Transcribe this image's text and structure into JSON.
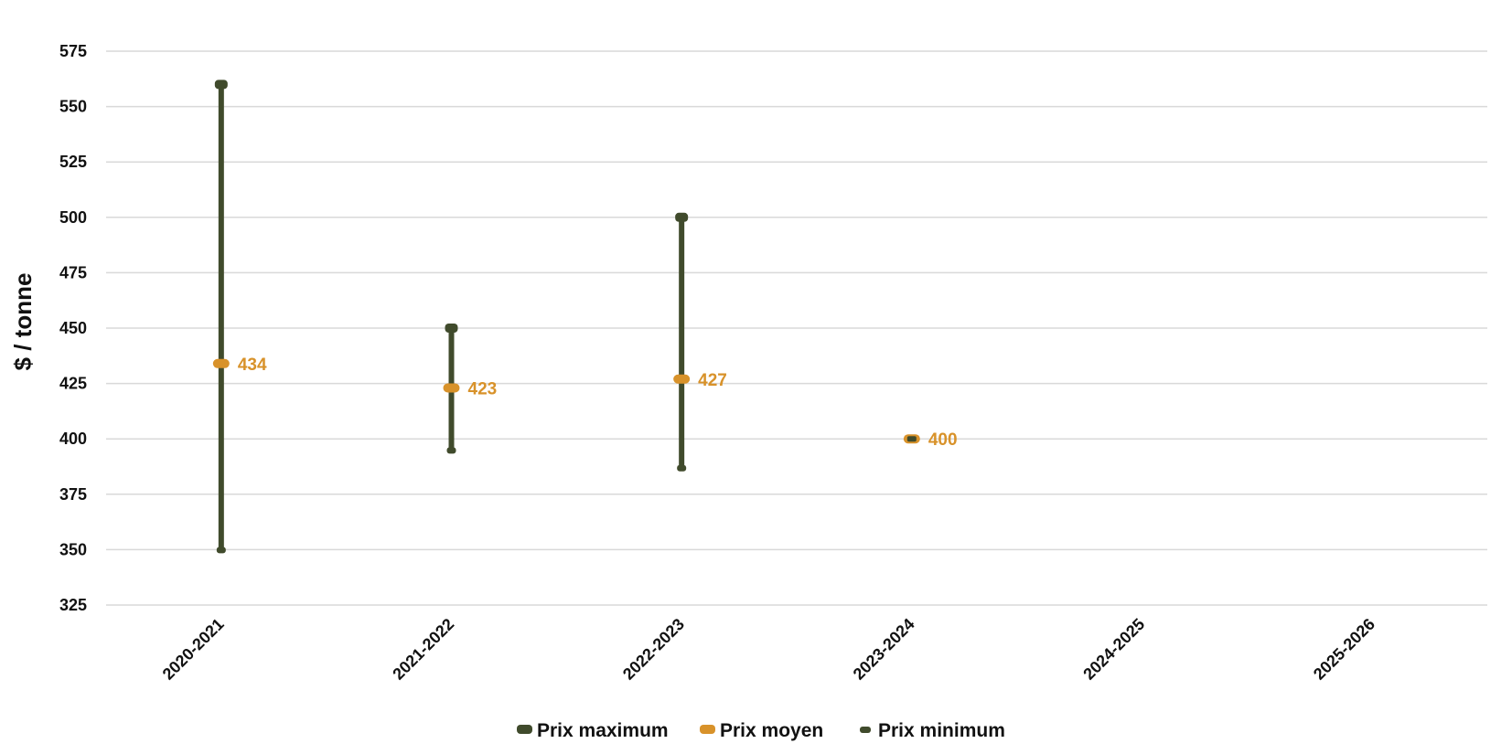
{
  "chart_data": {
    "type": "range",
    "title": "",
    "xlabel": "",
    "ylabel": "$ / tonne",
    "ylim": [
      325,
      575
    ],
    "y_ticks": [
      325,
      350,
      375,
      400,
      425,
      450,
      475,
      500,
      525,
      550,
      575
    ],
    "grid": true,
    "legend_position": "bottom",
    "categories": [
      "2020-2021",
      "2021-2022",
      "2022-2023",
      "2023-2024",
      "2024-2025",
      "2025-2026"
    ],
    "series": [
      {
        "name": "Prix maximum",
        "color": "#404b2c",
        "values": [
          560,
          450,
          500,
          400,
          null,
          null
        ]
      },
      {
        "name": "Prix moyen",
        "color": "#d8922a",
        "values": [
          434,
          423,
          427,
          400,
          null,
          null
        ]
      },
      {
        "name": "Prix minimum",
        "color": "#404b2c",
        "values": [
          350,
          395,
          387,
          400,
          null,
          null
        ]
      }
    ],
    "data_labels": [
      "434",
      "423",
      "427",
      "400",
      "",
      ""
    ]
  }
}
